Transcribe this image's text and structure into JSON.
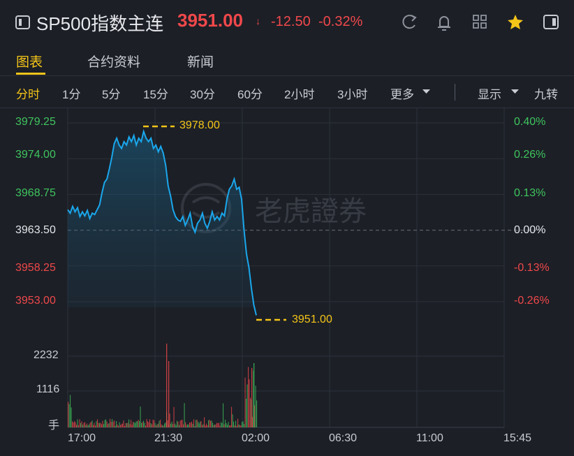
{
  "header": {
    "title": "SP500指数主连",
    "price": "3951.00",
    "arrow": "↓",
    "change": "-12.50",
    "change_pct": "-0.32%",
    "icons": [
      "back-icon",
      "refresh-icon",
      "bell-icon",
      "grid-icon",
      "star-icon",
      "sidebar-icon"
    ]
  },
  "tabs": [
    {
      "label": "图表",
      "active": true
    },
    {
      "label": "合约资料",
      "active": false
    },
    {
      "label": "新闻",
      "active": false
    }
  ],
  "timeframes": {
    "items": [
      "分时",
      "1分",
      "5分",
      "15分",
      "30分",
      "60分",
      "2小时",
      "3小时",
      "更多"
    ],
    "active": "分时",
    "display_label": "显示",
    "nine_label": "九转"
  },
  "chart": {
    "watermark": "老虎證券",
    "high_label": "3978.00",
    "low_label": "3951.00",
    "price_ticks": [
      "3979.25",
      "3974.00",
      "3968.75",
      "3963.50",
      "3958.25",
      "3953.00"
    ],
    "pct_ticks": [
      "0.40%",
      "0.26%",
      "0.13%",
      "0.00%",
      "-0.13%",
      "-0.26%"
    ],
    "volume_ticks": [
      "2232",
      "1116"
    ],
    "volume_unit": "手",
    "time_ticks": [
      "17:00",
      "21:30",
      "02:00",
      "06:30",
      "11:00",
      "15:45"
    ],
    "colors": {
      "line": "#1aa7ec",
      "up": "#3fc45e",
      "down": "#f0484b",
      "accent": "#f5c518"
    }
  },
  "chart_data": {
    "type": "line",
    "title": "",
    "xlabel": "",
    "ylabel": "",
    "prev_close": 3963.5,
    "ylim": [
      3950.0,
      3980.5
    ],
    "y_ticks": [
      3979.25,
      3974.0,
      3968.75,
      3963.5,
      3958.25,
      3953.0
    ],
    "x_ticks": [
      "17:00",
      "21:30",
      "02:00",
      "06:30",
      "11:00",
      "15:45"
    ],
    "series": [
      {
        "values": [
          3966.5,
          3966.0,
          3967.0,
          3966.2,
          3966.8,
          3965.5,
          3966.2,
          3965.6,
          3966.4,
          3965.2,
          3966.0,
          3965.8,
          3966.5,
          3967.2,
          3969.0,
          3970.5,
          3971.0,
          3972.5,
          3974.2,
          3976.2,
          3977.0,
          3976.0,
          3975.5,
          3976.5,
          3976.0,
          3977.2,
          3976.5,
          3977.4,
          3976.0,
          3977.0,
          3976.5,
          3978.0,
          3977.0,
          3976.5,
          3977.0,
          3975.5,
          3976.0,
          3975.0,
          3975.8,
          3974.8,
          3973.0,
          3970.0,
          3968.5,
          3966.5,
          3965.5,
          3965.0,
          3964.8,
          3965.5,
          3964.2,
          3965.0,
          3966.0,
          3964.0,
          3963.2,
          3964.5,
          3965.0,
          3966.0,
          3964.5,
          3963.8,
          3964.8,
          3966.2,
          3965.0,
          3965.5,
          3965.0,
          3966.0,
          3965.6,
          3968.0,
          3969.5,
          3970.0,
          3971.0,
          3969.5,
          3969.8,
          3968.0,
          3963.5,
          3960.0,
          3958.0,
          3955.0,
          3952.5,
          3951.0
        ]
      }
    ],
    "volume_ylim": [
      0,
      2232
    ],
    "volume_ticks": [
      1116,
      2232
    ],
    "high": 3978.0,
    "low": 3951.0
  }
}
